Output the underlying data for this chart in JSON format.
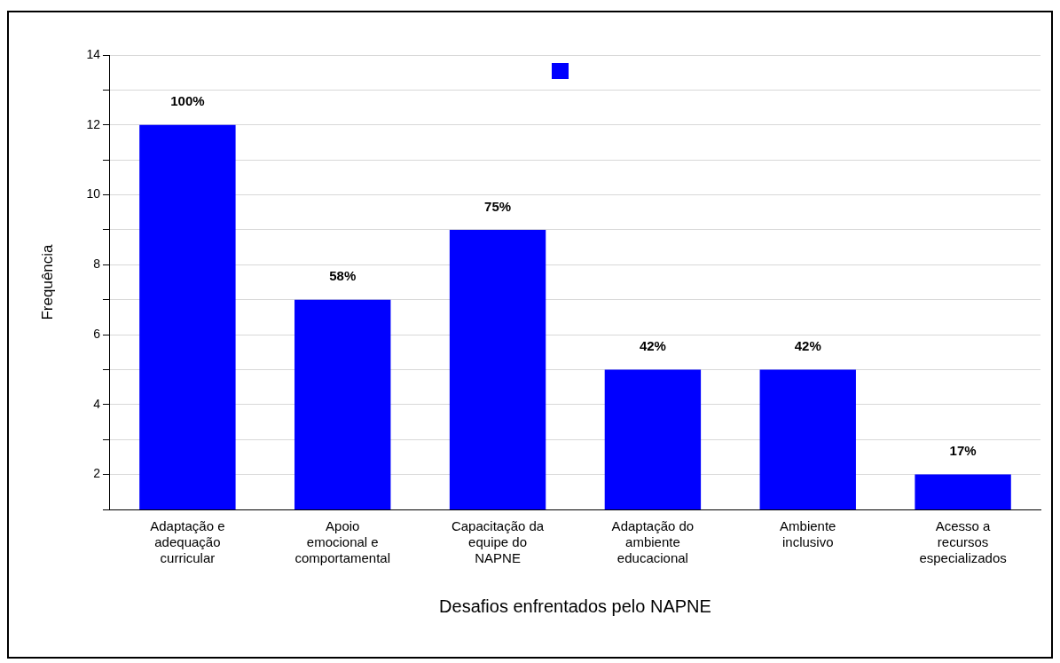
{
  "chart_data": {
    "type": "bar",
    "xlabel": "Desafios enfrentados pelo NAPNE",
    "ylabel": "Frequência",
    "categories": [
      "Adaptação e adequação curricular",
      "Apoio emocional e comportamental",
      "Capacitação da equipe do NAPNE",
      "Adaptação do ambiente educacional",
      "Ambiente inclusivo",
      "Acesso a recursos especializados"
    ],
    "values": [
      12,
      7,
      9,
      5,
      5,
      2
    ],
    "color": "#0000ff",
    "annotations": [
      {
        "text": "100%",
        "x": "Adaptação e adequação curricular",
        "y": 12
      },
      {
        "text": "58%",
        "x": "Apoio emocional e comportamental",
        "y": 7
      },
      {
        "text": "75%",
        "x": "Capacitação da equipe do NAPNE",
        "y": 9
      },
      {
        "text": "42%",
        "x": "Adaptação do ambiente educacional",
        "y": 5
      },
      {
        "text": "42%",
        "x": "Ambiente inclusivo",
        "y": 5
      },
      {
        "text": "17%",
        "x": "Acesso a recursos especializados",
        "y": 2
      }
    ],
    "ylim": [
      1,
      14
    ],
    "yticks": [
      {
        "value": 1,
        "label": null
      },
      2,
      {
        "value": 3,
        "label": null
      },
      4,
      {
        "value": 5,
        "label": null
      },
      6,
      {
        "value": 7,
        "label": null
      },
      8,
      {
        "value": 9,
        "label": null
      },
      10,
      {
        "value": 11,
        "label": null
      },
      12,
      {
        "value": 13,
        "label": null
      },
      14
    ],
    "grid": "y",
    "legend": false
  }
}
